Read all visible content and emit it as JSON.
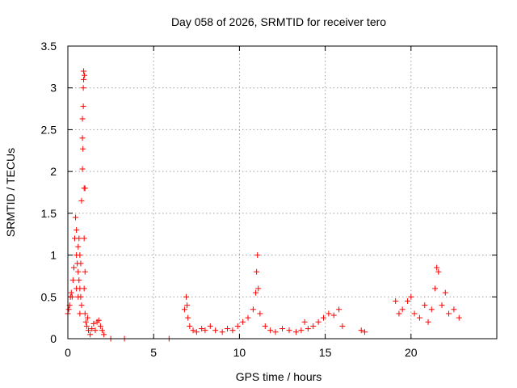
{
  "chart_data": {
    "type": "scatter",
    "title": "Day 058 of 2026, SRMTID for receiver tero",
    "xlabel": "GPS time / hours",
    "ylabel": "SRMTID / TECUs",
    "xlim": [
      0,
      25
    ],
    "ylim": [
      0,
      3.5
    ],
    "xticks": [
      0,
      5,
      10,
      15,
      20
    ],
    "xtick_labels": [
      "0",
      "5",
      "10",
      "15",
      "20"
    ],
    "yticks": [
      0,
      0.5,
      1,
      1.5,
      2,
      2.5,
      3,
      3.5
    ],
    "ytick_labels": [
      "0",
      "0.5",
      "1",
      "1.5",
      "2",
      "2.5",
      "3",
      "3.5"
    ],
    "grid": true,
    "marker": "+",
    "marker_color": "#ff0000",
    "series": [
      {
        "name": "SRMTID",
        "x": [
          0.0,
          0.05,
          0.1,
          0.15,
          0.2,
          0.25,
          0.3,
          0.35,
          0.4,
          0.45,
          0.5,
          0.5,
          0.5,
          0.55,
          0.6,
          0.6,
          0.6,
          0.65,
          0.65,
          0.7,
          0.7,
          0.7,
          0.75,
          0.75,
          0.8,
          0.8,
          0.85,
          0.85,
          0.85,
          0.88,
          0.9,
          0.9,
          0.92,
          0.92,
          0.95,
          0.95,
          0.95,
          0.97,
          1.0,
          1.0,
          1.0,
          1.05,
          1.1,
          1.15,
          1.2,
          1.3,
          1.4,
          1.5,
          1.6,
          1.7,
          1.8,
          1.9,
          2.0,
          2.1,
          2.5,
          3.3,
          5.9,
          6.8,
          6.9,
          6.95,
          7.0,
          7.1,
          7.3,
          7.5,
          7.8,
          8.0,
          8.3,
          8.6,
          9.0,
          9.3,
          9.6,
          9.9,
          10.2,
          10.5,
          10.8,
          10.95,
          11.0,
          11.05,
          11.1,
          11.2,
          11.5,
          11.8,
          12.1,
          12.5,
          12.9,
          13.3,
          13.6,
          13.8,
          14.0,
          14.3,
          14.6,
          14.9,
          15.2,
          15.5,
          15.8,
          16.0,
          17.1,
          17.3,
          19.1,
          19.3,
          19.5,
          19.8,
          20.0,
          20.2,
          20.5,
          20.8,
          21.0,
          21.2,
          21.4,
          21.5,
          21.6,
          21.8,
          22.0,
          22.2,
          22.5,
          22.8
        ],
        "y": [
          0.3,
          0.35,
          0.4,
          0.5,
          0.55,
          0.5,
          0.7,
          0.85,
          1.2,
          1.45,
          1.3,
          1.0,
          0.6,
          0.9,
          1.1,
          0.8,
          0.5,
          1.2,
          0.7,
          1.0,
          0.6,
          0.3,
          0.9,
          0.5,
          1.65,
          0.4,
          2.03,
          2.4,
          2.63,
          2.27,
          2.78,
          3.0,
          3.1,
          3.2,
          1.8,
          1.2,
          0.6,
          3.15,
          1.8,
          0.8,
          0.3,
          0.2,
          0.15,
          0.25,
          0.1,
          0.05,
          0.12,
          0.18,
          0.1,
          0.2,
          0.22,
          0.15,
          0.1,
          0.05,
          0.0,
          0.0,
          0.0,
          0.35,
          0.5,
          0.4,
          0.25,
          0.15,
          0.1,
          0.08,
          0.12,
          0.1,
          0.15,
          0.1,
          0.08,
          0.12,
          0.1,
          0.15,
          0.2,
          0.25,
          0.35,
          0.55,
          0.8,
          1.0,
          0.6,
          0.3,
          0.15,
          0.1,
          0.08,
          0.12,
          0.1,
          0.08,
          0.1,
          0.2,
          0.12,
          0.15,
          0.2,
          0.25,
          0.3,
          0.28,
          0.35,
          0.15,
          0.1,
          0.08,
          0.45,
          0.3,
          0.35,
          0.45,
          0.5,
          0.3,
          0.25,
          0.4,
          0.2,
          0.35,
          0.6,
          0.85,
          0.8,
          0.4,
          0.55,
          0.3,
          0.35,
          0.25
        ]
      }
    ]
  }
}
